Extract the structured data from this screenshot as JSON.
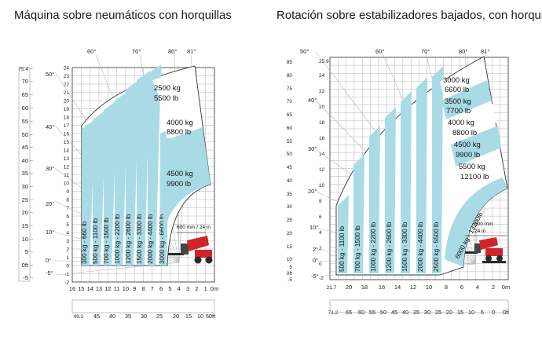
{
  "charts": [
    {
      "title": "Máquina sobre neumáticos con horquillas",
      "y_ft_ticks": [
        "75.4",
        "70",
        "65",
        "60",
        "55",
        "50",
        "45",
        "40",
        "35",
        "30",
        "25",
        "20",
        "15",
        "10",
        "5",
        "0ft",
        "-5"
      ],
      "y_m_ticks": [
        "24",
        "23",
        "22",
        "21",
        "20",
        "19",
        "18",
        "17",
        "16",
        "15",
        "14",
        "13",
        "12",
        "11",
        "10",
        "9",
        "8",
        "7",
        "6",
        "5",
        "4",
        "3",
        "2",
        "1",
        "0",
        "-1",
        "-2"
      ],
      "x_m_ticks": [
        "16",
        "15",
        "14",
        "13",
        "12",
        "11",
        "10",
        "9",
        "8",
        "7",
        "6",
        "5",
        "4",
        "3",
        "2",
        "1",
        "0m"
      ],
      "x_ft_ticks": [
        "49.2",
        "45",
        "40",
        "35",
        "30",
        "25",
        "20",
        "15",
        "10",
        "5",
        "0ft"
      ],
      "angle_left_ticks": [
        "50°",
        "40°",
        "30°",
        "20°",
        "10°",
        "0°",
        "-5°"
      ],
      "angle_top_ticks": [
        "60°",
        "70°",
        "80°",
        "81°"
      ],
      "bands": [
        "300 kg - 660 lb",
        "500 kg - 1100 lb",
        "700 kg - 1500 lb",
        "1000 kg - 2200 lb",
        "1200 kg - 2600 lb",
        "1500 kg - 3300 lb",
        "2000 kg - 4400 lb",
        "3000 kg - 6600 lb"
      ],
      "loads": [
        {
          "kg": "2500 kg",
          "lb": "5500 lb"
        },
        {
          "kg": "4000 kg",
          "lb": "8800 lb"
        },
        {
          "kg": "4500 kg",
          "lb": "9900 lb"
        }
      ],
      "note": "600 mm / 24 in"
    },
    {
      "title": "Rotación sobre estabilizadores bajados, con horquillas",
      "y_ft_ticks": [
        "85",
        "80",
        "75",
        "70",
        "65",
        "60",
        "55",
        "50",
        "45",
        "40",
        "35",
        "30",
        "25",
        "20",
        "15",
        "10",
        "5",
        "0ft",
        "-5"
      ],
      "y_m_ticks": [
        "25.9",
        "24",
        "22",
        "20",
        "18",
        "16",
        "14",
        "12",
        "10",
        "8",
        "6",
        "4",
        "2",
        "0",
        "-2"
      ],
      "x_m_ticks": [
        "21.7",
        "20",
        "18",
        "16",
        "14",
        "12",
        "10",
        "8",
        "6",
        "4",
        "2",
        "0m"
      ],
      "x_ft_ticks": [
        "71.2",
        "65",
        "60",
        "55",
        "50",
        "45",
        "40",
        "35",
        "30",
        "25",
        "20",
        "15",
        "10",
        "5",
        "0",
        "0ft"
      ],
      "angle_left_ticks": [
        "50°",
        "40°",
        "30°",
        "20°",
        "10°",
        "2°",
        "0°",
        "-5°"
      ],
      "angle_top_ticks": [
        "60°",
        "70°",
        "80°",
        "81°"
      ],
      "bands": [
        "500 kg - 1100 lb",
        "700 kg - 1500 lb",
        "1000 kg - 2200 lb",
        "1200 kg - 2600 lb",
        "1500 kg - 3300 lb",
        "2000 kg - 4400 lb",
        "2500 kg - 5500 lb",
        "6000 kg - 13200lb"
      ],
      "loads": [
        {
          "kg": "3000 kg",
          "lb": "6600 lb"
        },
        {
          "kg": "3500 kg",
          "lb": "7700 lb"
        },
        {
          "kg": "4000 kg",
          "lb": "8800 lb"
        },
        {
          "kg": "4500 kg",
          "lb": "9900 lb"
        },
        {
          "kg": "5500 kg",
          "lb": "12100 lb"
        }
      ],
      "note_line1": "600 mm",
      "note_line2": "24 in"
    }
  ],
  "colors": {
    "band": "#a9dbe6",
    "grid": "#b5b5b5",
    "frame": "#333333",
    "machine_red": "#d2232a",
    "machine_dark": "#2a2a2a"
  }
}
